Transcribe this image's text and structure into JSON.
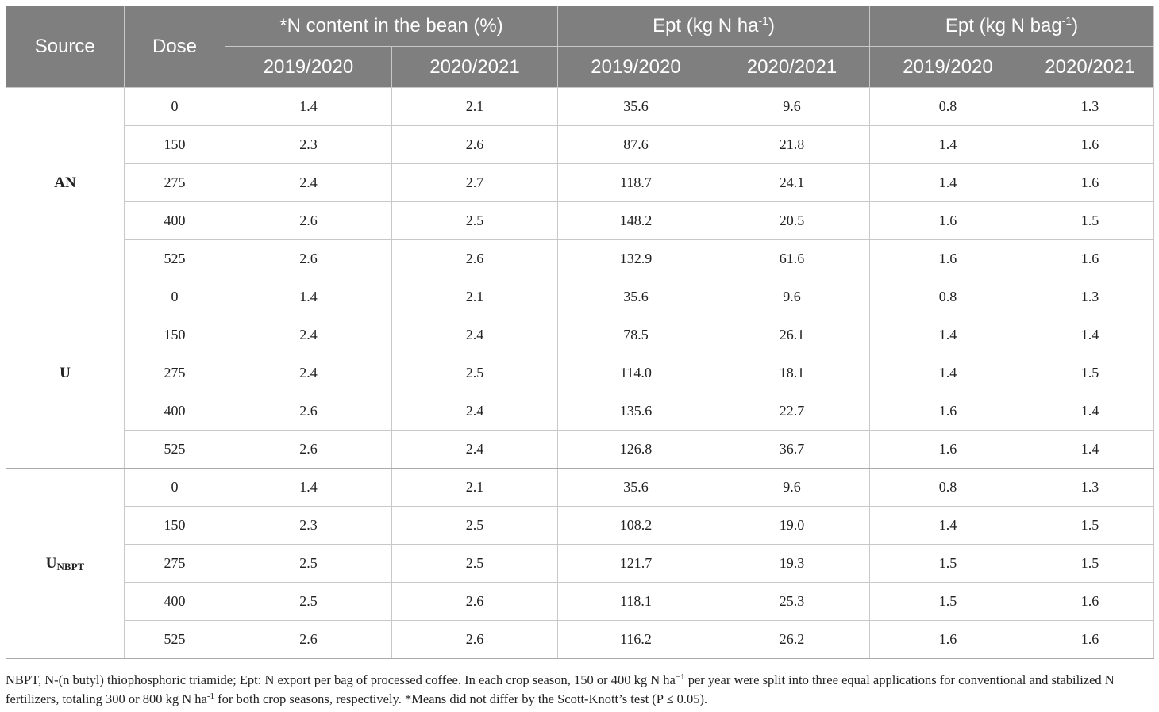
{
  "table": {
    "header": {
      "source": "Source",
      "dose": "Dose",
      "group_n_content": "*N content in the bean (%)",
      "group_ept_ha_prefix": "Ept (kg N ha",
      "group_ept_ha_sup": "-1",
      "group_ept_ha_suffix": ")",
      "group_ept_bag_prefix": "Ept (kg N bag",
      "group_ept_bag_sup": "-1",
      "group_ept_bag_suffix": ")",
      "years": [
        "2019/2020",
        "2020/2021",
        "2019/2020",
        "2020/2021",
        "2019/2020",
        "2020/2021"
      ]
    },
    "groups": [
      {
        "source": "AN",
        "source_sub": "",
        "rows": [
          {
            "dose": "0",
            "values": [
              "1.4",
              "2.1",
              "35.6",
              "9.6",
              "0.8",
              "1.3"
            ]
          },
          {
            "dose": "150",
            "values": [
              "2.3",
              "2.6",
              "87.6",
              "21.8",
              "1.4",
              "1.6"
            ]
          },
          {
            "dose": "275",
            "values": [
              "2.4",
              "2.7",
              "118.7",
              "24.1",
              "1.4",
              "1.6"
            ]
          },
          {
            "dose": "400",
            "values": [
              "2.6",
              "2.5",
              "148.2",
              "20.5",
              "1.6",
              "1.5"
            ]
          },
          {
            "dose": "525",
            "values": [
              "2.6",
              "2.6",
              "132.9",
              "61.6",
              "1.6",
              "1.6"
            ]
          }
        ]
      },
      {
        "source": "U",
        "source_sub": "",
        "rows": [
          {
            "dose": "0",
            "values": [
              "1.4",
              "2.1",
              "35.6",
              "9.6",
              "0.8",
              "1.3"
            ]
          },
          {
            "dose": "150",
            "values": [
              "2.4",
              "2.4",
              "78.5",
              "26.1",
              "1.4",
              "1.4"
            ]
          },
          {
            "dose": "275",
            "values": [
              "2.4",
              "2.5",
              "114.0",
              "18.1",
              "1.4",
              "1.5"
            ]
          },
          {
            "dose": "400",
            "values": [
              "2.6",
              "2.4",
              "135.6",
              "22.7",
              "1.6",
              "1.4"
            ]
          },
          {
            "dose": "525",
            "values": [
              "2.6",
              "2.4",
              "126.8",
              "36.7",
              "1.6",
              "1.4"
            ]
          }
        ]
      },
      {
        "source": "U",
        "source_sub": "NBPT",
        "rows": [
          {
            "dose": "0",
            "values": [
              "1.4",
              "2.1",
              "35.6",
              "9.6",
              "0.8",
              "1.3"
            ]
          },
          {
            "dose": "150",
            "values": [
              "2.3",
              "2.5",
              "108.2",
              "19.0",
              "1.4",
              "1.5"
            ]
          },
          {
            "dose": "275",
            "values": [
              "2.5",
              "2.5",
              "121.7",
              "19.3",
              "1.5",
              "1.5"
            ]
          },
          {
            "dose": "400",
            "values": [
              "2.5",
              "2.6",
              "118.1",
              "25.3",
              "1.5",
              "1.6"
            ]
          },
          {
            "dose": "525",
            "values": [
              "2.6",
              "2.6",
              "116.2",
              "26.2",
              "1.6",
              "1.6"
            ]
          }
        ]
      }
    ]
  },
  "footnote": {
    "part1": "NBPT, N-(n butyl) thiophosphoric triamide; Ept: N export per bag of processed coffee. In each crop season, 150 or 400 kg N ha",
    "sup1": "−1",
    "part2": " per year were split into three equal applications for conventional and stabilized N fertilizers, totaling 300 or 800 kg N ha",
    "sup2": "-1",
    "part3": " for both crop seasons, respectively. *Means did not differ by the Scott-Knott’s test (P ≤ 0.05)."
  }
}
